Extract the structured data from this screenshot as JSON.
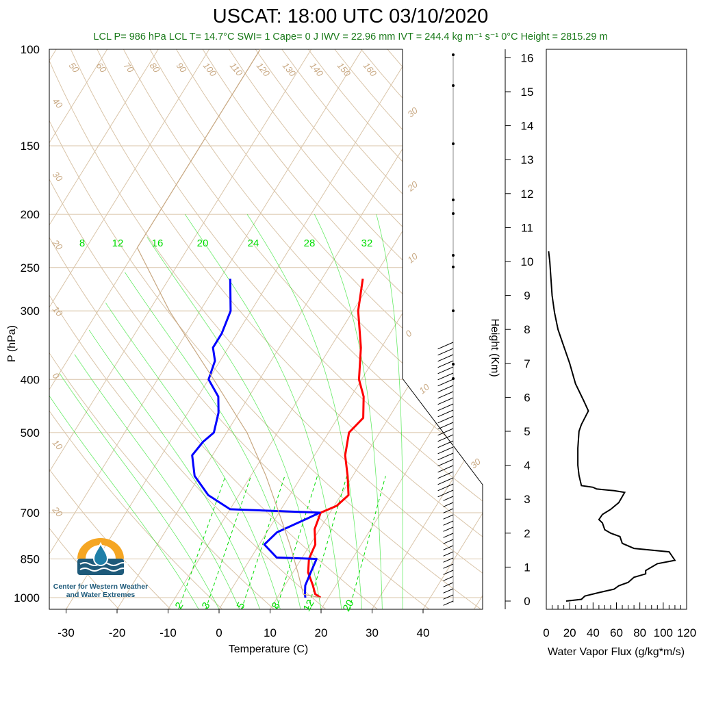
{
  "title": "USCAT: 18:00 UTC 03/10/2020",
  "stats": "LCL P= 986 hPa  LCL T= 14.7°C  SWI= 1  Cape= 0 J  IWV = 22.96 mm  IVT = 244.4 kg m⁻¹ s⁻¹  0°C Height = 2815.29 m",
  "logo": {
    "line1": "Center for Western Weather",
    "line2": "and Water Extremes",
    "colors": {
      "sun": "#f5a623",
      "drop": "#1e7fa8",
      "waves": "#1e5a7a"
    }
  },
  "chart_data": [
    {
      "type": "line",
      "subtype": "skew-T log-P sounding",
      "xlabel": "Temperature (C)",
      "ylabel": "P (hPa)",
      "ylabel_right": "Height (Km)",
      "x_ticks": [
        "-30",
        "-20",
        "-10",
        "0",
        "10",
        "20",
        "30",
        "40"
      ],
      "y_ticks": [
        "100",
        "150",
        "200",
        "250",
        "300",
        "400",
        "500",
        "700",
        "850",
        "1000"
      ],
      "height_ticks": [
        "0",
        "1",
        "2",
        "3",
        "4",
        "5",
        "6",
        "7",
        "8",
        "9",
        "10",
        "11",
        "12",
        "13",
        "14",
        "15",
        "16"
      ],
      "mixing_ratio_labels": [
        "8",
        "12",
        "16",
        "20",
        "24",
        "28",
        "32"
      ],
      "mixing_ratio_bottom_labels": [
        "2",
        "3",
        "5",
        "8",
        "12",
        "20"
      ],
      "adiabat_labels_top": [
        "50",
        "60",
        "70",
        "80",
        "90",
        "100",
        "110",
        "120",
        "130",
        "140",
        "150",
        "160"
      ],
      "adiabat_labels_left": [
        "40",
        "30",
        "20",
        "10",
        "0",
        "10",
        "20"
      ],
      "isotherm_labels_right": [
        "30",
        "20",
        "10",
        "0",
        "10",
        "30"
      ],
      "colors": {
        "temperature": "#ff0000",
        "dewpoint": "#0000ff",
        "parcel": "#c8a882",
        "mixing_ratio": "#00dd00",
        "background_lines": "#d9c4a8",
        "wind": "#000000"
      },
      "series": [
        {
          "name": "Temperature",
          "points": [
            [
              1000,
              18.5
            ],
            [
              985,
              17
            ],
            [
              950,
              15.5
            ],
            [
              900,
              13
            ],
            [
              850,
              11.5
            ],
            [
              800,
              11
            ],
            [
              750,
              9
            ],
            [
              700,
              8.2
            ],
            [
              680,
              10.5
            ],
            [
              650,
              11.5
            ],
            [
              600,
              9
            ],
            [
              550,
              6
            ],
            [
              500,
              4
            ],
            [
              470,
              5
            ],
            [
              430,
              2.5
            ],
            [
              400,
              -0.5
            ],
            [
              350,
              -4
            ],
            [
              300,
              -9
            ],
            [
              262,
              -12
            ]
          ]
        },
        {
          "name": "Dewpoint",
          "points": [
            [
              1000,
              15.5
            ],
            [
              985,
              15
            ],
            [
              950,
              14
            ],
            [
              900,
              13.5
            ],
            [
              850,
              13
            ],
            [
              845,
              5
            ],
            [
              800,
              1
            ],
            [
              760,
              2
            ],
            [
              720,
              6
            ],
            [
              700,
              8
            ],
            [
              690,
              -10
            ],
            [
              650,
              -16
            ],
            [
              600,
              -21
            ],
            [
              550,
              -24
            ],
            [
              520,
              -23.5
            ],
            [
              500,
              -22.5
            ],
            [
              460,
              -24
            ],
            [
              430,
              -26
            ],
            [
              400,
              -30
            ],
            [
              370,
              -31
            ],
            [
              350,
              -33
            ],
            [
              330,
              -33
            ],
            [
              300,
              -34
            ],
            [
              262,
              -38
            ]
          ]
        },
        {
          "name": "Parcel",
          "points": [
            [
              1000,
              18.5
            ],
            [
              986,
              14.7
            ],
            [
              900,
              11
            ],
            [
              800,
              6
            ],
            [
              700,
              0
            ],
            [
              600,
              -7
            ],
            [
              500,
              -16
            ],
            [
              400,
              -29
            ],
            [
              300,
              -46
            ],
            [
              230,
              -60
            ],
            [
              100,
              -60
            ]
          ]
        }
      ]
    },
    {
      "type": "line",
      "xlabel": "Water Vapor Flux (g/kg*m/s)",
      "x_ticks": [
        "0",
        "20",
        "40",
        "60",
        "80",
        "100",
        "120"
      ],
      "xlim": [
        0,
        120
      ],
      "ylim_km": [
        0,
        16
      ],
      "series": [
        {
          "name": "Water Vapor Flux",
          "points": [
            [
              17,
              0
            ],
            [
              30,
              0.05
            ],
            [
              33,
              0.15
            ],
            [
              45,
              0.25
            ],
            [
              58,
              0.35
            ],
            [
              62,
              0.45
            ],
            [
              70,
              0.55
            ],
            [
              75,
              0.7
            ],
            [
              85,
              0.8
            ],
            [
              85,
              0.9
            ],
            [
              90,
              1.0
            ],
            [
              95,
              1.1
            ],
            [
              110,
              1.2
            ],
            [
              108,
              1.3
            ],
            [
              105,
              1.45
            ],
            [
              75,
              1.55
            ],
            [
              65,
              1.7
            ],
            [
              63,
              1.9
            ],
            [
              55,
              2.0
            ],
            [
              50,
              2.1
            ],
            [
              48,
              2.3
            ],
            [
              45,
              2.4
            ],
            [
              48,
              2.55
            ],
            [
              55,
              2.7
            ],
            [
              62,
              2.9
            ],
            [
              67,
              3.2
            ],
            [
              58,
              3.25
            ],
            [
              43,
              3.3
            ],
            [
              40,
              3.35
            ],
            [
              30,
              3.4
            ],
            [
              28,
              3.7
            ],
            [
              27,
              4.0
            ],
            [
              27,
              4.5
            ],
            [
              28,
              5.0
            ],
            [
              30,
              5.2
            ],
            [
              36,
              5.6
            ],
            [
              32,
              5.9
            ],
            [
              25,
              6.4
            ],
            [
              20,
              7.0
            ],
            [
              15,
              7.5
            ],
            [
              10,
              8.0
            ],
            [
              7,
              8.5
            ],
            [
              5,
              9.0
            ],
            [
              4,
              9.5
            ],
            [
              3,
              10.0
            ],
            [
              2,
              10.3
            ]
          ]
        }
      ]
    }
  ]
}
